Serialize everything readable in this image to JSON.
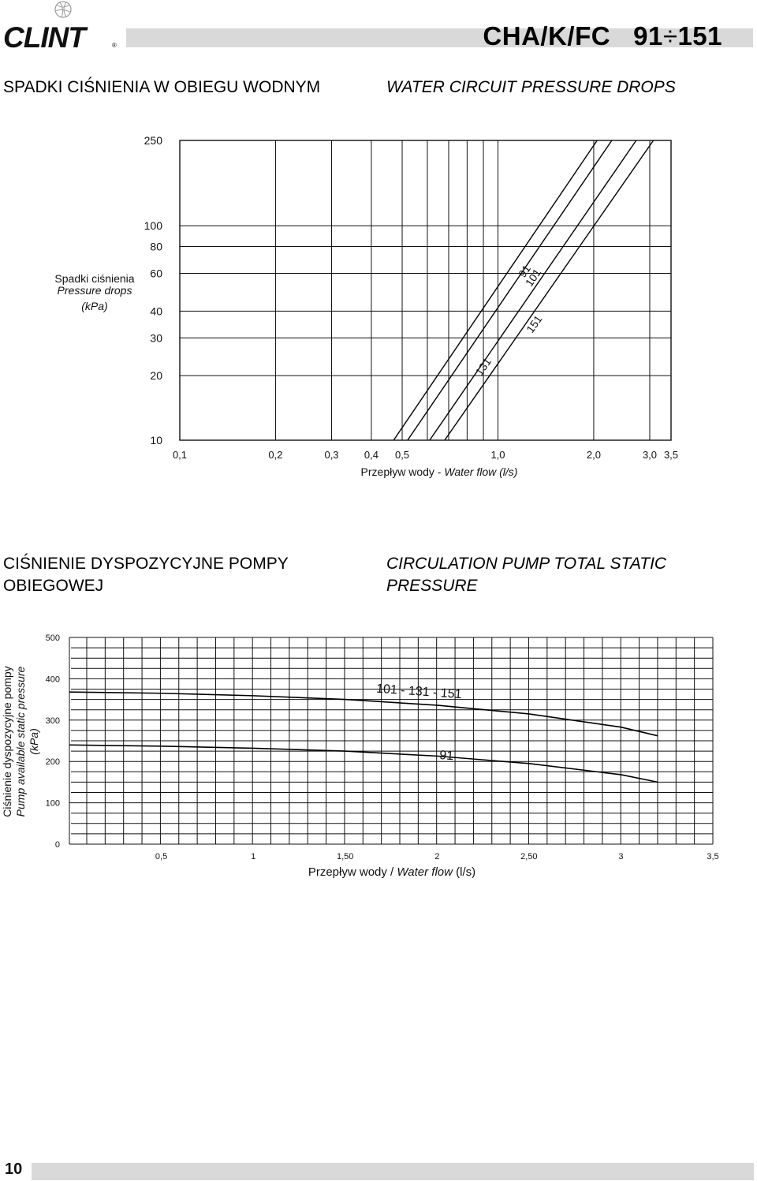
{
  "header": {
    "brand": "CLINT",
    "model": "CHA/K/FC",
    "range_from": "91",
    "range_sep": "÷",
    "range_to": "151"
  },
  "section1": {
    "title_pl": "SPADKI CIŚNIENIA W OBIEGU WODNYM",
    "title_en": "WATER CIRCUIT PRESSURE DROPS"
  },
  "section2": {
    "title_pl_line1": "CIŚNIENIE DYSPOZYCYJNE POMPY",
    "title_pl_line2": "OBIEGOWEJ",
    "title_en_line1": "CIRCULATION PUMP TOTAL STATIC",
    "title_en_line2": "PRESSURE"
  },
  "footer": {
    "page_number": "10"
  },
  "colors": {
    "grid": "#111111",
    "bar": "#d9d9d9"
  },
  "chart_data": [
    {
      "type": "line",
      "scale": "log-log",
      "grid": true,
      "ylabel_lines": [
        "Spadki ciśnienia",
        "Pressure drops",
        "(kPa)"
      ],
      "xlabel_pl": "Przepływ wody - ",
      "xlabel_en": "Water flow (l/s)",
      "xlim": [
        0.1,
        3.5
      ],
      "ylim": [
        10,
        250
      ],
      "xticks": [
        {
          "v": 0.1,
          "label": "0,1"
        },
        {
          "v": 0.2,
          "label": "0,2"
        },
        {
          "v": 0.3,
          "label": "0,3"
        },
        {
          "v": 0.4,
          "label": "0,4"
        },
        {
          "v": 0.5,
          "label": "0,5"
        },
        {
          "v": 1.0,
          "label": "1,0"
        },
        {
          "v": 2.0,
          "label": "2,0"
        },
        {
          "v": 3.0,
          "label": "3,0"
        },
        {
          "v": 3.5,
          "label": "3,5"
        }
      ],
      "yticks": [
        {
          "v": 10,
          "label": "10"
        },
        {
          "v": 20,
          "label": "20"
        },
        {
          "v": 30,
          "label": "30"
        },
        {
          "v": 40,
          "label": "40"
        },
        {
          "v": 60,
          "label": "60"
        },
        {
          "v": 80,
          "label": "80"
        },
        {
          "v": 100,
          "label": "100"
        },
        {
          "v": 250,
          "label": "250"
        }
      ],
      "xgrid_values": [
        0.1,
        0.2,
        0.3,
        0.4,
        0.5,
        0.6,
        0.7,
        0.8,
        0.9,
        1.0,
        2.0,
        3.0,
        3.5
      ],
      "ygrid_values": [
        10,
        20,
        30,
        40,
        60,
        80,
        100,
        250
      ],
      "series": [
        {
          "name": "91",
          "x": [
            0.47,
            2.05
          ],
          "y": [
            10,
            250
          ],
          "label_at": [
            1.24,
            60
          ]
        },
        {
          "name": "101",
          "x": [
            0.52,
            2.28
          ],
          "y": [
            10,
            250
          ],
          "label_at": [
            1.32,
            56
          ]
        },
        {
          "name": "131",
          "x": [
            0.61,
            2.72
          ],
          "y": [
            10,
            250
          ],
          "label_at": [
            0.92,
            21.5
          ]
        },
        {
          "name": "151",
          "x": [
            0.68,
            3.08
          ],
          "y": [
            10,
            250
          ],
          "label_at": [
            1.33,
            34
          ]
        }
      ]
    },
    {
      "type": "line",
      "grid": true,
      "ylabel_lines": [
        "Ciśnienie dyspozycyjne pompy",
        "Pump available static pressure",
        "(kPa)"
      ],
      "xlabel_pl": "Przepływ wody / ",
      "xlabel_en": "Water flow",
      "xlabel_unit": " (l/s)",
      "xlim": [
        0,
        3.5
      ],
      "ylim": [
        0,
        500
      ],
      "xticks": [
        {
          "v": 0.5,
          "label": "0,5"
        },
        {
          "v": 1.0,
          "label": "1"
        },
        {
          "v": 1.5,
          "label": "1,50"
        },
        {
          "v": 2.0,
          "label": "2"
        },
        {
          "v": 2.5,
          "label": "2,50"
        },
        {
          "v": 3.0,
          "label": "3"
        },
        {
          "v": 3.5,
          "label": "3,5"
        }
      ],
      "yticks": [
        {
          "v": 0,
          "label": "0"
        },
        {
          "v": 100,
          "label": "100"
        },
        {
          "v": 200,
          "label": "200"
        },
        {
          "v": 300,
          "label": "300"
        },
        {
          "v": 400,
          "label": "400"
        },
        {
          "v": 500,
          "label": "500"
        }
      ],
      "series": [
        {
          "name": "101 - 131 - 151",
          "x": [
            0,
            0.5,
            1.0,
            1.5,
            2.0,
            2.5,
            3.0,
            3.2
          ],
          "y": [
            368,
            365,
            359,
            350,
            336,
            315,
            283,
            262
          ],
          "label_at": [
            1.9,
            360
          ]
        },
        {
          "name": "91",
          "x": [
            0,
            0.5,
            1.0,
            1.5,
            2.0,
            2.5,
            3.0,
            3.2
          ],
          "y": [
            240,
            237,
            232,
            225,
            213,
            195,
            168,
            150
          ],
          "label_at": [
            2.05,
            205
          ]
        }
      ]
    }
  ]
}
